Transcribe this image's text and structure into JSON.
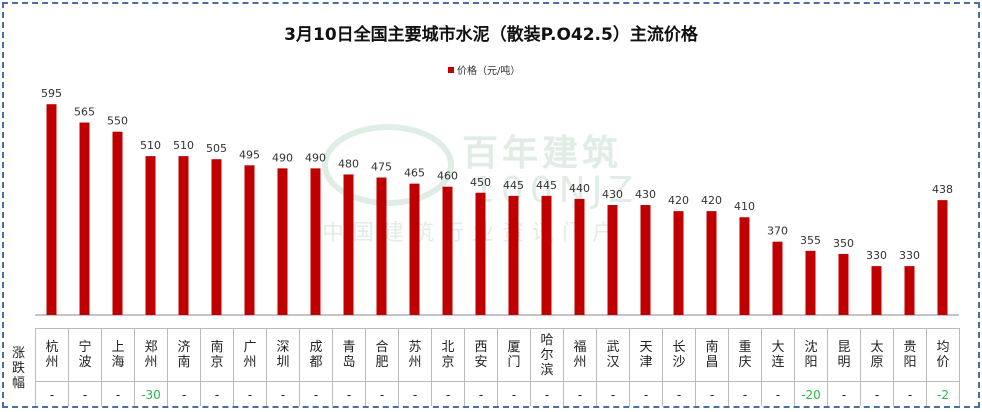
{
  "chart_data": {
    "type": "bar",
    "title": "3月10日全国主要城市水泥（散装P.O42.5）主流价格",
    "legend": {
      "entries": [
        "价格（元/吨）"
      ],
      "placement": "top"
    },
    "categories": [
      "杭州",
      "宁波",
      "上海",
      "郑州",
      "济南",
      "南京",
      "广州",
      "深圳",
      "成都",
      "青岛",
      "合肥",
      "苏州",
      "北京",
      "西安",
      "厦门",
      "哈尔滨",
      "福州",
      "武汉",
      "天津",
      "长沙",
      "南昌",
      "重庆",
      "大连",
      "沈阳",
      "昆明",
      "太原",
      "贵阳",
      "均价"
    ],
    "series": [
      {
        "name": "价格（元/吨）",
        "color": "#c00000",
        "values": [
          595,
          565,
          550,
          510,
          510,
          505,
          495,
          490,
          490,
          480,
          475,
          465,
          460,
          450,
          445,
          445,
          440,
          430,
          430,
          420,
          420,
          410,
          370,
          355,
          350,
          330,
          330,
          438
        ]
      }
    ],
    "ylim": [
      250,
      600
    ],
    "grid": false,
    "table": {
      "row_label": "涨跌幅",
      "changes": [
        "-",
        "-",
        "-",
        "-30",
        "-",
        "-",
        "-",
        "-",
        "-",
        "-",
        "-",
        "-",
        "-",
        "-",
        "-",
        "-",
        "-",
        "-",
        "-",
        "-",
        "-",
        "-",
        "-",
        "-20",
        "-",
        "-",
        "-",
        "-2"
      ]
    }
  },
  "watermark": {
    "name": "百年建筑",
    "en": "100NJZ",
    "tagline": "中国建筑行业资讯门户"
  }
}
